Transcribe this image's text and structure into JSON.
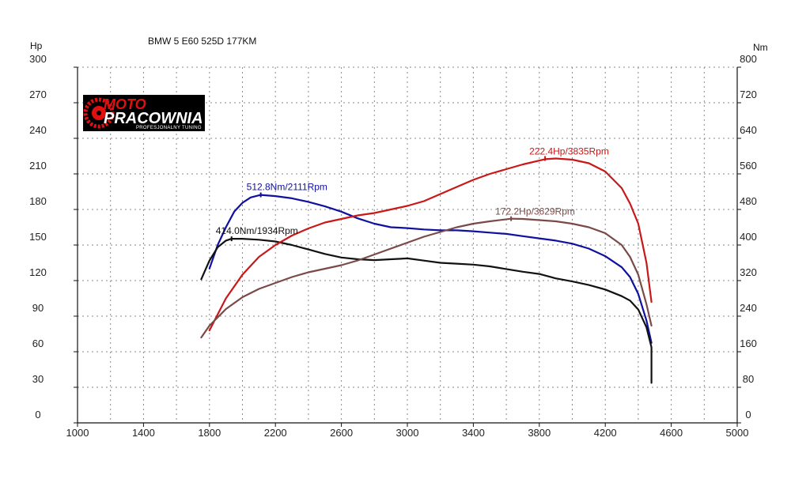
{
  "chart_data": {
    "type": "line",
    "title": "BMW 5 E60 525D 177KM",
    "ylabel_left": "Hp",
    "ylabel_right": "Nm",
    "x_ticks": [
      1000,
      1400,
      1800,
      2200,
      2600,
      3000,
      3400,
      3800,
      4200,
      4600,
      5000
    ],
    "y_left_ticks": [
      0,
      30,
      60,
      90,
      120,
      150,
      180,
      210,
      240,
      270,
      300
    ],
    "y_right_ticks": [
      0,
      80,
      160,
      240,
      320,
      400,
      480,
      560,
      640,
      720,
      800
    ],
    "xlim": [
      1000,
      5000
    ],
    "ylim_left": [
      0,
      300
    ],
    "ylim_right": [
      0,
      800
    ],
    "grid": true,
    "series": [
      {
        "axis": "right",
        "color": "#1010a0",
        "peak_label": "512.8Nm/2111Rpm",
        "peak_x": 2111,
        "x": [
          1800,
          1850,
          1900,
          1950,
          2000,
          2050,
          2111,
          2200,
          2300,
          2400,
          2500,
          2600,
          2700,
          2800,
          2900,
          3000,
          3100,
          3200,
          3300,
          3400,
          3500,
          3600,
          3700,
          3800,
          3900,
          4000,
          4100,
          4200,
          4300,
          4350,
          4400,
          4450,
          4480
        ],
        "values": [
          347,
          400,
          440,
          475,
          495,
          507,
          512.8,
          510,
          505,
          497,
          487,
          475,
          460,
          448,
          440,
          438,
          435,
          433,
          433,
          431,
          428,
          425,
          420,
          415,
          410,
          403,
          392,
          375,
          350,
          328,
          290,
          230,
          180
        ]
      },
      {
        "axis": "right",
        "color": "#111111",
        "peak_label": "414.0Nm/1934Rpm",
        "peak_x": 1934,
        "x": [
          1750,
          1800,
          1850,
          1900,
          1934,
          2000,
          2100,
          2200,
          2300,
          2400,
          2500,
          2600,
          2700,
          2800,
          2900,
          3000,
          3100,
          3200,
          3300,
          3400,
          3500,
          3600,
          3700,
          3800,
          3900,
          4000,
          4100,
          4200,
          4300,
          4350,
          4400,
          4450,
          4480,
          4480
        ],
        "values": [
          323,
          365,
          395,
          410,
          414,
          414,
          412,
          408,
          400,
          390,
          380,
          372,
          368,
          366,
          368,
          370,
          365,
          360,
          358,
          356,
          352,
          346,
          340,
          335,
          325,
          318,
          310,
          300,
          285,
          275,
          255,
          215,
          170,
          90
        ]
      },
      {
        "axis": "left",
        "color": "#c81818",
        "peak_label": "222.4Hp/3835Rpm",
        "peak_x": 3835,
        "x": [
          1800,
          1900,
          2000,
          2100,
          2200,
          2300,
          2400,
          2500,
          2600,
          2700,
          2800,
          2900,
          3000,
          3100,
          3200,
          3300,
          3400,
          3500,
          3600,
          3700,
          3835,
          3900,
          4000,
          4100,
          4200,
          4300,
          4350,
          4400,
          4450,
          4480
        ],
        "values": [
          78,
          105,
          125,
          140,
          150,
          158,
          164,
          169,
          172,
          175,
          177,
          180,
          183,
          187,
          193,
          199,
          205,
          210,
          214,
          218,
          222.4,
          223,
          222,
          219,
          212,
          198,
          185,
          168,
          135,
          102
        ]
      },
      {
        "axis": "left",
        "color": "#7a4a48",
        "peak_label": "172.2Hp/3629Rpm",
        "peak_x": 3629,
        "x": [
          1750,
          1800,
          1900,
          2000,
          2100,
          2200,
          2300,
          2400,
          2500,
          2600,
          2700,
          2800,
          2900,
          3000,
          3100,
          3200,
          3300,
          3400,
          3500,
          3629,
          3700,
          3800,
          3900,
          4000,
          4100,
          4200,
          4300,
          4350,
          4400,
          4450,
          4480
        ],
        "values": [
          72,
          82,
          96,
          106,
          113,
          118,
          123,
          127,
          130,
          133,
          137,
          142,
          147,
          152,
          157,
          161,
          165,
          168,
          170,
          172.2,
          172,
          171,
          170,
          168,
          165,
          160,
          150,
          140,
          125,
          100,
          82
        ]
      }
    ]
  },
  "logo": {
    "brand_top": "MOTO",
    "brand_main": "PRACOWNIA",
    "tagline": "PROFESJONALNY TUNING"
  },
  "colors": {
    "torque_tuned": "#1010a0",
    "torque_stock": "#111111",
    "power_tuned": "#c81818",
    "power_stock": "#7a4a48",
    "grid": "#8a8a8a"
  }
}
